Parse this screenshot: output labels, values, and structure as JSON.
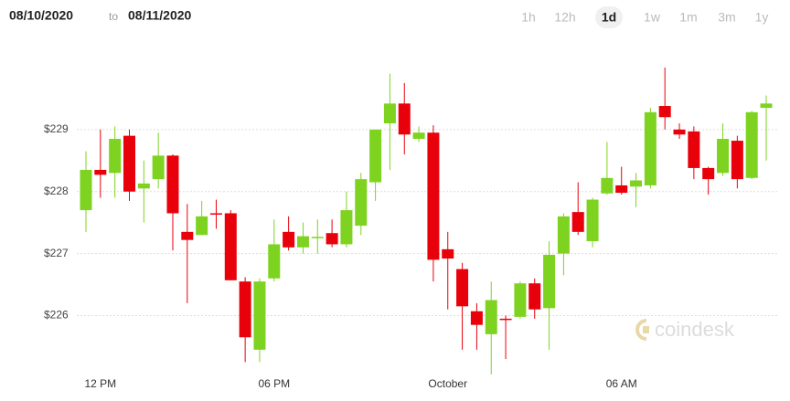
{
  "chart_data": {
    "type": "candlestick",
    "date_range": {
      "from": "08/10/2020",
      "separator": "to",
      "to": "08/11/2020"
    },
    "range_buttons": [
      "1h",
      "12h",
      "1d",
      "1w",
      "1m",
      "3m",
      "1y"
    ],
    "active_range": "1d",
    "watermark": "coindesk",
    "categories": [
      null,
      "12 PM",
      null,
      null,
      null,
      null,
      null,
      null,
      null,
      null,
      null,
      null,
      null,
      "06 PM",
      null,
      null,
      null,
      null,
      null,
      null,
      null,
      null,
      null,
      null,
      null,
      "October",
      null,
      null,
      null,
      null,
      null,
      null,
      null,
      null,
      null,
      null,
      null,
      "06 AM",
      null,
      null,
      null,
      null,
      null,
      null,
      null,
      null,
      null,
      null
    ],
    "open": [
      227.7,
      228.35,
      228.3,
      228.9,
      228.05,
      228.2,
      228.58,
      227.35,
      227.3,
      227.65,
      227.65,
      226.55,
      225.45,
      226.6,
      227.35,
      227.1,
      227.25,
      227.33,
      227.15,
      227.45,
      228.15,
      229.1,
      229.42,
      228.85,
      228.95,
      227.07,
      226.75,
      226.07,
      225.7,
      225.95,
      225.98,
      226.52,
      226.12,
      227.0,
      227.67,
      227.2,
      227.97,
      228.1,
      228.08,
      228.1,
      229.38,
      229.0,
      228.97,
      228.38,
      228.3,
      228.82,
      228.22,
      229.35
    ],
    "high": [
      228.65,
      229.0,
      229.05,
      229.0,
      228.5,
      228.95,
      228.6,
      227.8,
      227.85,
      227.87,
      227.7,
      226.62,
      226.6,
      227.55,
      227.6,
      227.5,
      227.55,
      227.55,
      228.0,
      228.3,
      229.0,
      229.9,
      229.75,
      229.05,
      229.07,
      227.35,
      226.85,
      226.2,
      226.55,
      226.0,
      226.55,
      226.6,
      227.2,
      227.65,
      228.15,
      227.9,
      228.8,
      228.4,
      228.3,
      229.35,
      230.0,
      229.1,
      229.05,
      228.4,
      229.1,
      228.9,
      229.3,
      229.55
    ],
    "low": [
      227.35,
      227.9,
      227.9,
      227.85,
      227.5,
      228.05,
      227.05,
      226.2,
      227.3,
      227.4,
      226.57,
      225.25,
      225.25,
      226.55,
      227.05,
      227.0,
      227.0,
      227.1,
      227.1,
      227.3,
      227.85,
      228.35,
      228.6,
      228.8,
      226.55,
      226.1,
      225.45,
      225.45,
      225.05,
      225.3,
      225.95,
      225.95,
      225.45,
      226.65,
      227.3,
      227.1,
      227.95,
      227.95,
      227.75,
      228.05,
      229.0,
      228.85,
      228.2,
      227.95,
      228.25,
      228.05,
      228.2,
      228.5
    ],
    "close": [
      228.35,
      228.27,
      228.85,
      228.0,
      228.13,
      228.58,
      227.65,
      227.22,
      227.6,
      227.63,
      226.57,
      225.65,
      226.55,
      227.15,
      227.1,
      227.28,
      227.27,
      227.15,
      227.7,
      228.2,
      229.0,
      229.42,
      228.92,
      228.95,
      226.9,
      226.92,
      226.15,
      225.85,
      226.25,
      225.93,
      226.52,
      226.1,
      226.98,
      227.6,
      227.35,
      227.87,
      228.22,
      227.98,
      228.18,
      229.28,
      229.2,
      228.92,
      228.38,
      228.2,
      228.85,
      228.2,
      229.28,
      229.42
    ],
    "up_color": "#7ed321",
    "down_color": "#e8000b",
    "ylim": [
      225.05,
      230.5
    ],
    "yticks": [
      {
        "value": 226,
        "label": "$226"
      },
      {
        "value": 227,
        "label": "$227"
      },
      {
        "value": 228,
        "label": "$228"
      },
      {
        "value": 229,
        "label": "$229"
      }
    ],
    "grid": true
  }
}
